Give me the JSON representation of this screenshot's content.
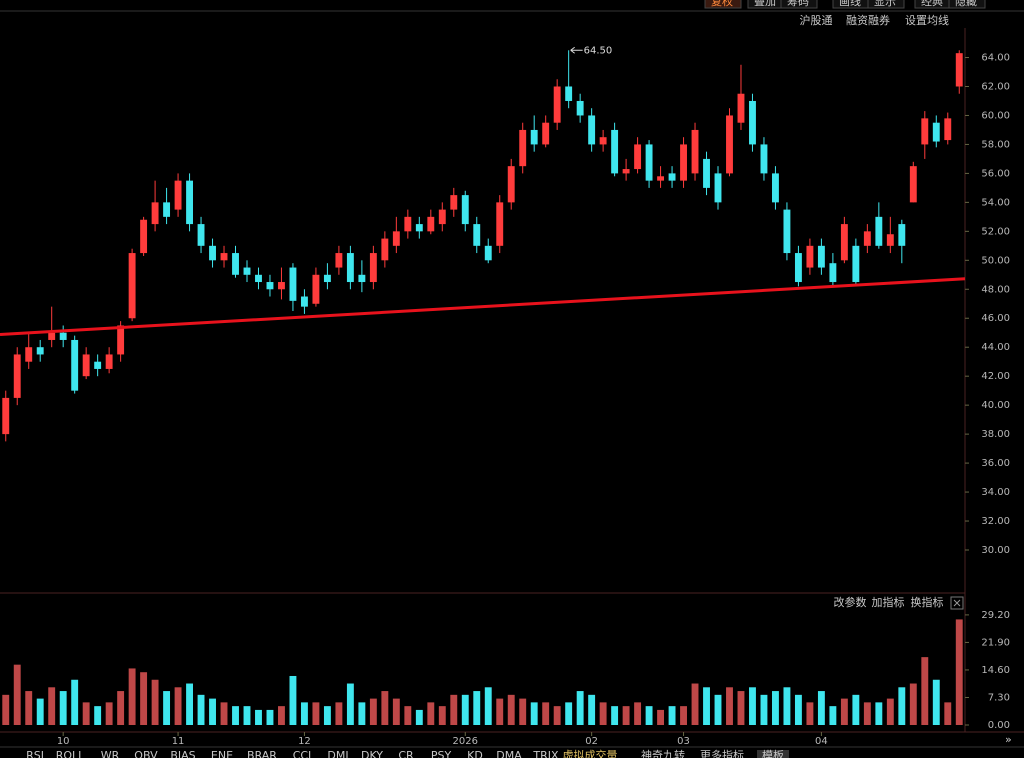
{
  "toolbar": [
    "复权",
    "叠加",
    "筹码",
    "画线",
    "显示",
    "经典",
    "隐藏"
  ],
  "subbar": [
    "沪股通",
    "融资融券",
    "设置均线"
  ],
  "indicator_actions": [
    "改参数",
    "加指标",
    "换指标"
  ],
  "indicator_tabs": [
    "RSI",
    "ROLL",
    "WR",
    "OBV",
    "BIAS",
    "ENE",
    "BRAR",
    "CCI",
    "DMI",
    "DKY",
    "CR",
    "PSY",
    "KD",
    "DMA",
    "TRIX",
    "虚拟成交量",
    "神奇九转",
    "更多指标",
    "模板"
  ],
  "chart_data": {
    "type": "candlestick",
    "categories": [
      null,
      null,
      null,
      null,
      null,
      "10",
      null,
      null,
      null,
      null,
      null,
      null,
      null,
      null,
      null,
      "11",
      null,
      null,
      null,
      null,
      null,
      null,
      null,
      null,
      null,
      null,
      "12",
      null,
      null,
      null,
      null,
      null,
      null,
      null,
      null,
      null,
      null,
      null,
      null,
      null,
      "2026",
      null,
      null,
      null,
      null,
      null,
      null,
      null,
      null,
      null,
      null,
      "02",
      null,
      null,
      null,
      null,
      null,
      null,
      null,
      "03",
      null,
      null,
      null,
      null,
      null,
      null,
      null,
      null,
      null,
      null,
      null,
      "04",
      null,
      null,
      null,
      null,
      null,
      null,
      null,
      null,
      null,
      null,
      null,
      null
    ],
    "open": [
      38,
      40.5,
      43,
      44,
      44.5,
      45,
      44.5,
      42,
      43,
      42.5,
      43.5,
      46,
      50.5,
      52.5,
      54,
      53.5,
      55.5,
      52.5,
      51,
      50,
      50.5,
      49.5,
      49,
      48.5,
      48,
      49.5,
      47.5,
      47,
      49,
      49.5,
      50.5,
      49,
      48.5,
      50,
      51,
      52,
      52.5,
      52,
      52.5,
      53.5,
      54.5,
      52.5,
      51,
      51,
      54,
      56.5,
      59,
      58,
      59.5,
      62,
      61,
      60,
      58,
      59,
      56,
      56.3,
      58,
      55.5,
      56,
      55.5,
      56,
      57,
      56,
      56,
      59.5,
      61,
      58,
      56,
      53.5,
      50.5,
      49.5,
      51,
      49.8,
      50,
      51,
      51,
      53,
      51,
      52.5,
      54,
      58,
      59.5,
      58.3,
      62
    ],
    "high": [
      41,
      44,
      45,
      44.5,
      46.8,
      45.5,
      44.8,
      44,
      43.5,
      44,
      45.8,
      50.8,
      53,
      55.5,
      55,
      56,
      56,
      53,
      51.5,
      51,
      51,
      50,
      49.5,
      49,
      49.5,
      49.8,
      48,
      49.5,
      49.8,
      51,
      51,
      50,
      51,
      52,
      53,
      53.5,
      53,
      53.5,
      54,
      55,
      54.8,
      53,
      51.5,
      54.5,
      57,
      59.5,
      60,
      60,
      62.5,
      64.5,
      61.5,
      60.5,
      59,
      59.5,
      57,
      58.5,
      58.3,
      56.5,
      56.5,
      58.5,
      59.5,
      57.5,
      56.5,
      60.5,
      63.5,
      61.5,
      58.5,
      56.5,
      54,
      51,
      51.5,
      51.5,
      50.5,
      53,
      51.5,
      52.5,
      54,
      53,
      52.8,
      56.8,
      60.3,
      60,
      60.2,
      64.5
    ],
    "low": [
      37.5,
      40,
      42.5,
      43,
      44,
      44,
      40.8,
      41.8,
      42,
      42.2,
      43,
      45.8,
      50.3,
      52,
      52.5,
      53,
      52,
      50.5,
      49.5,
      49.5,
      48.8,
      48.5,
      48,
      47.5,
      47.3,
      46.5,
      46.3,
      46.8,
      48,
      49,
      48,
      47.8,
      48,
      49.5,
      50.5,
      51.5,
      51.5,
      51.8,
      52,
      53,
      52,
      50.5,
      49.8,
      50.5,
      53.5,
      56,
      57.5,
      57.8,
      59,
      60.5,
      59.5,
      57.5,
      57.5,
      55.8,
      55.5,
      56,
      55,
      55,
      55,
      55,
      55.5,
      54.5,
      53.5,
      55.8,
      59,
      57.5,
      55.5,
      53.5,
      50,
      48.2,
      49,
      49,
      48.2,
      49.8,
      48.2,
      50.5,
      50.8,
      50.5,
      49.8,
      54,
      57,
      57.8,
      58,
      61.5
    ],
    "close": [
      40.5,
      43.5,
      44,
      43.5,
      45,
      44.5,
      41,
      43.5,
      42.5,
      43.5,
      45.5,
      50.5,
      52.8,
      54,
      53,
      55.5,
      52.5,
      51,
      50,
      50.5,
      49,
      49,
      48.5,
      48,
      48.5,
      47.2,
      46.8,
      49,
      48.5,
      50.5,
      48.5,
      48.5,
      50.5,
      51.5,
      52,
      53,
      52,
      53,
      53.5,
      54.5,
      52.5,
      51,
      50,
      54,
      56.5,
      59,
      58,
      59.5,
      62,
      61,
      60,
      58,
      58.5,
      56,
      56.3,
      58,
      55.5,
      55.8,
      55.5,
      58,
      59,
      55,
      54,
      60,
      61.5,
      58,
      56,
      54,
      50.5,
      48.5,
      51,
      49.5,
      48.5,
      52.5,
      48.5,
      52,
      51,
      51.8,
      51,
      56.5,
      59.8,
      58.2,
      59.8,
      64.3
    ],
    "volume": [
      8,
      16,
      9,
      7,
      10,
      9,
      12,
      6,
      5,
      6,
      9,
      15,
      14,
      12,
      9,
      10,
      11,
      8,
      7,
      6,
      5,
      5,
      4,
      4,
      5,
      13,
      6,
      6,
      5,
      6,
      11,
      6,
      7,
      9,
      7,
      5,
      4,
      6,
      5,
      8,
      8,
      9,
      10,
      7,
      8,
      7,
      6,
      6,
      5,
      6,
      9,
      8,
      6,
      5,
      5,
      6,
      5,
      4,
      5,
      5,
      11,
      10,
      8,
      10,
      9,
      10,
      8,
      9,
      10,
      8,
      6,
      9,
      5,
      7,
      8,
      6,
      6,
      7,
      10,
      11,
      18,
      12,
      6,
      28
    ],
    "up_color": "#ff3c3c",
    "down_color": "#3fe6ee",
    "trendline": {
      "color": "#e8121c",
      "values": [
        44.9,
        48.7
      ]
    },
    "max_label": {
      "value": 64.5,
      "label": "64.50"
    },
    "ylim": [
      27.1,
      65.9
    ],
    "yticks": [
      {
        "value": 30,
        "label": "30.00"
      },
      {
        "value": 32,
        "label": "32.00"
      },
      {
        "value": 34,
        "label": "34.00"
      },
      {
        "value": 36,
        "label": "36.00"
      },
      {
        "value": 38,
        "label": "38.00"
      },
      {
        "value": 40,
        "label": "40.00"
      },
      {
        "value": 42,
        "label": "42.00"
      },
      {
        "value": 44,
        "label": "44.00"
      },
      {
        "value": 46,
        "label": "46.00"
      },
      {
        "value": 48,
        "label": "48.00"
      },
      {
        "value": 50,
        "label": "50.00"
      },
      {
        "value": 52,
        "label": "52.00"
      },
      {
        "value": 54,
        "label": "54.00"
      },
      {
        "value": 56,
        "label": "56.00"
      },
      {
        "value": 58,
        "label": "58.00"
      },
      {
        "value": 60,
        "label": "60.00"
      },
      {
        "value": 62,
        "label": "62.00"
      },
      {
        "value": 64,
        "label": "64.00"
      }
    ],
    "y2lim": [
      0,
      30.5
    ],
    "y2ticks": [
      {
        "value": 0,
        "label": "0.00"
      },
      {
        "value": 7.3,
        "label": "7.30"
      },
      {
        "value": 14.6,
        "label": "14.60"
      },
      {
        "value": 21.9,
        "label": "21.90"
      },
      {
        "value": 29.2,
        "label": "29.20"
      }
    ]
  }
}
